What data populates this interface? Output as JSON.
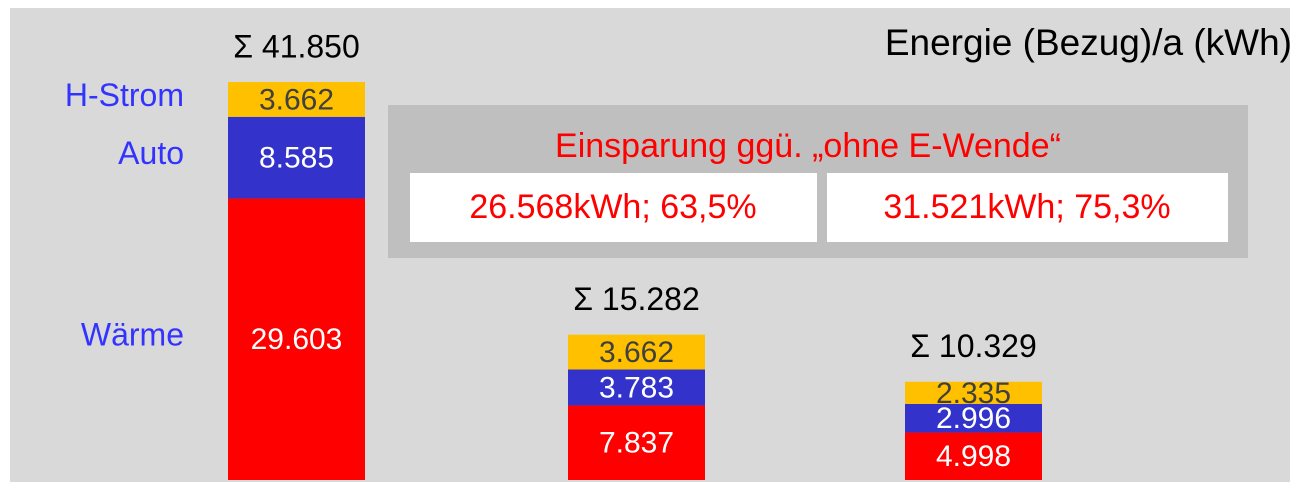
{
  "chart_data": {
    "type": "bar",
    "stacked": true,
    "title": "Energie (Bezug)/a (kWh)",
    "categories": [
      null,
      null,
      null
    ],
    "series": [
      {
        "name": "Wärme",
        "color": "#ff0000",
        "values": [
          29603,
          7837,
          4998
        ],
        "value_labels": [
          "29.603",
          "7.837",
          "4.998"
        ]
      },
      {
        "name": "Auto",
        "color": "#3333cc",
        "values": [
          8585,
          3783,
          2996
        ],
        "value_labels": [
          "8.585",
          "3.783",
          "2.996"
        ]
      },
      {
        "name": "H-Strom",
        "color": "#ffc000",
        "values": [
          3662,
          3662,
          2335
        ],
        "value_labels": [
          "3.662",
          "3.662",
          "2.335"
        ]
      }
    ],
    "totals": [
      "Σ 41.850",
      "Σ 15.282",
      "Σ 10.329"
    ],
    "savings_box": {
      "title": "Einsparung ggü. „ohne E-Wende“",
      "items": [
        "26.568kWh; 63,5%",
        "31.521kWh; 75,3%"
      ]
    }
  }
}
